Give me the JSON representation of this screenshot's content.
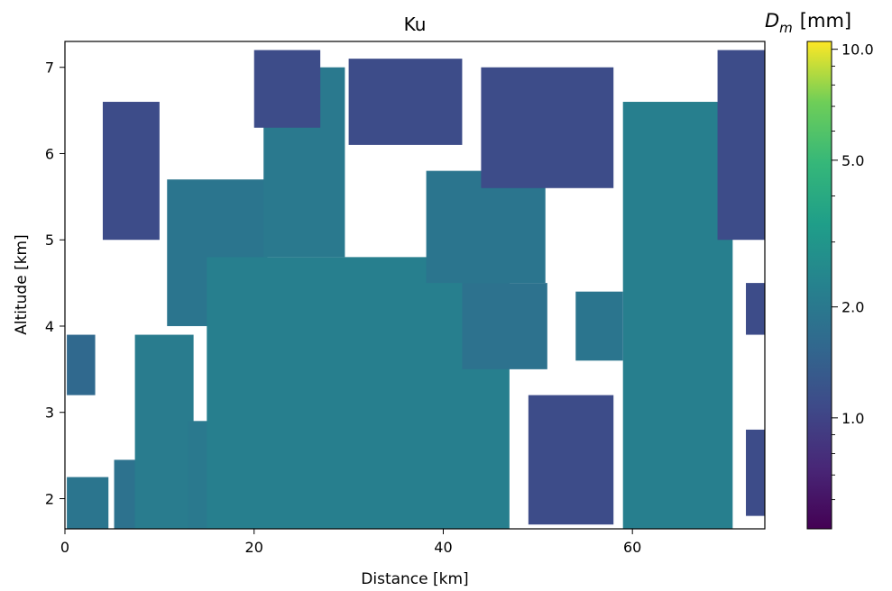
{
  "chart_data": {
    "type": "heatmap",
    "title": "Ku",
    "xlabel": "Distance [km]",
    "ylabel": "Altitude [km]",
    "xlim": [
      0,
      74
    ],
    "ylim": [
      1.65,
      7.3
    ],
    "x_ticks": [
      {
        "value": 0,
        "label": "0"
      },
      {
        "value": 20,
        "label": "20"
      },
      {
        "value": 40,
        "label": "40"
      },
      {
        "value": 60,
        "label": "60"
      }
    ],
    "y_ticks": [
      {
        "value": 2,
        "label": "2"
      },
      {
        "value": 3,
        "label": "3"
      },
      {
        "value": 4,
        "label": "4"
      },
      {
        "value": 5,
        "label": "5"
      },
      {
        "value": 6,
        "label": "6"
      },
      {
        "value": 7,
        "label": "7"
      }
    ],
    "colorbar": {
      "label": "D_m [mm]",
      "label_main": "D",
      "label_sub": "m",
      "label_unit": "[mm]",
      "scale": "log",
      "range": [
        0.5,
        10.5
      ],
      "colormap": "viridis",
      "ticks": [
        {
          "value": 1.0,
          "label": "1.0"
        },
        {
          "value": 2.0,
          "label": "2.0"
        },
        {
          "value": 5.0,
          "label": "5.0"
        },
        {
          "value": 10.0,
          "label": "10.0"
        }
      ],
      "minor_ticks": [
        0.6,
        0.7,
        0.8,
        0.9,
        3,
        4,
        6,
        7,
        8,
        9
      ]
    },
    "cells": [
      {
        "x0": 0.2,
        "x1": 4.6,
        "y0": 1.65,
        "y1": 2.25,
        "value": 1.9
      },
      {
        "x0": 0.2,
        "x1": 3.2,
        "y0": 3.2,
        "y1": 3.9,
        "value": 1.6
      },
      {
        "x0": 5.2,
        "x1": 7.6,
        "y0": 1.65,
        "y1": 2.45,
        "value": 1.8
      },
      {
        "x0": 7.4,
        "x1": 13.6,
        "y0": 1.65,
        "y1": 3.9,
        "value": 2.1
      },
      {
        "x0": 13.0,
        "x1": 16.2,
        "y0": 1.65,
        "y1": 2.9,
        "value": 2.0
      },
      {
        "x0": 10.8,
        "x1": 21.4,
        "y0": 4.0,
        "y1": 5.7,
        "value": 1.9
      },
      {
        "x0": 15.0,
        "x1": 47.0,
        "y0": 1.65,
        "y1": 4.8,
        "value": 2.2
      },
      {
        "x0": 21.0,
        "x1": 29.6,
        "y0": 4.8,
        "y1": 7.0,
        "value": 2.0
      },
      {
        "x0": 38.2,
        "x1": 50.8,
        "y0": 4.5,
        "y1": 5.8,
        "value": 1.9
      },
      {
        "x0": 42.0,
        "x1": 51.0,
        "y0": 3.5,
        "y1": 4.5,
        "value": 1.8
      },
      {
        "x0": 59.0,
        "x1": 70.6,
        "y0": 1.65,
        "y1": 6.6,
        "value": 2.2
      },
      {
        "x0": 54.0,
        "x1": 59.0,
        "y0": 3.6,
        "y1": 4.4,
        "value": 1.9
      },
      {
        "x0": 4.0,
        "x1": 10.0,
        "y0": 5.0,
        "y1": 6.6,
        "value": 1.1
      },
      {
        "x0": 20.0,
        "x1": 27.0,
        "y0": 6.3,
        "y1": 7.2,
        "value": 1.1
      },
      {
        "x0": 30.0,
        "x1": 42.0,
        "y0": 6.1,
        "y1": 7.1,
        "value": 1.1
      },
      {
        "x0": 44.0,
        "x1": 58.0,
        "y0": 5.6,
        "y1": 7.0,
        "value": 1.1
      },
      {
        "x0": 69.0,
        "x1": 74.0,
        "y0": 5.0,
        "y1": 7.2,
        "value": 1.1
      },
      {
        "x0": 49.0,
        "x1": 58.0,
        "y0": 1.7,
        "y1": 3.2,
        "value": 1.1
      },
      {
        "x0": 72.0,
        "x1": 74.0,
        "y0": 3.9,
        "y1": 4.5,
        "value": 1.1
      },
      {
        "x0": 72.0,
        "x1": 74.0,
        "y0": 1.8,
        "y1": 2.8,
        "value": 1.1
      }
    ]
  }
}
